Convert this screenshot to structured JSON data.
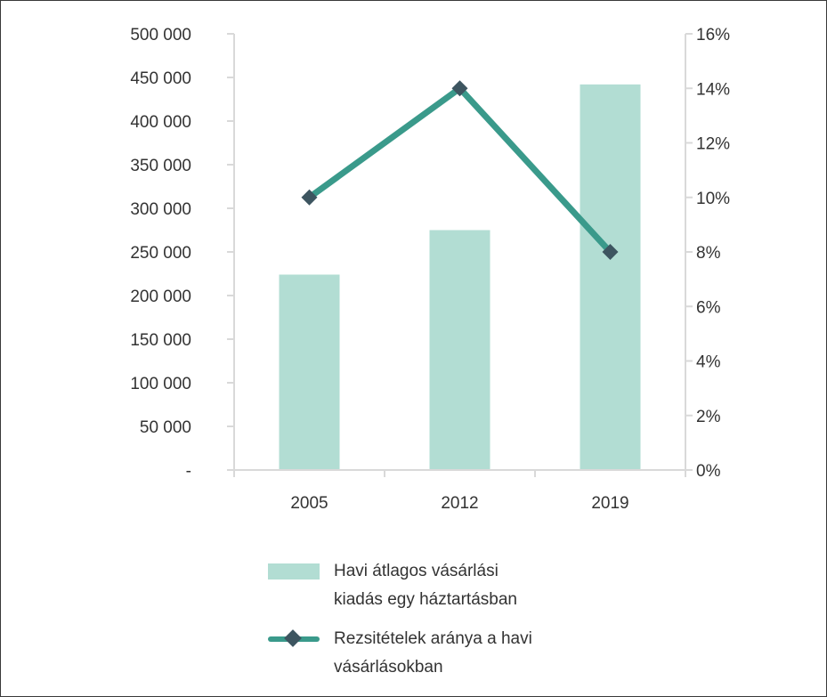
{
  "chart_data": {
    "type": "bar",
    "categories": [
      "2005",
      "2012",
      "2019"
    ],
    "series": [
      {
        "name": "Havi átlagos vásárlási kiadás egy háztartásban",
        "kind": "bar",
        "axis": "left",
        "values": [
          224000,
          275000,
          442000
        ],
        "color": "#b2ddd3"
      },
      {
        "name": "Rezsitételek aránya a havi vásárlásokban",
        "kind": "line",
        "axis": "right",
        "values": [
          10,
          14,
          8
        ],
        "color": "#3a9a8b",
        "marker_color": "#3d5560"
      }
    ],
    "left_axis": {
      "ylim": [
        0,
        500000
      ],
      "ticks": [
        0,
        50000,
        100000,
        150000,
        200000,
        250000,
        300000,
        350000,
        400000,
        450000,
        500000
      ],
      "tick_labels": [
        "-",
        "50 000",
        "100 000",
        "150 000",
        "200 000",
        "250 000",
        "300 000",
        "350 000",
        "400 000",
        "450 000",
        "500 000"
      ]
    },
    "right_axis": {
      "ylim": [
        0,
        16
      ],
      "ticks": [
        0,
        2,
        4,
        6,
        8,
        10,
        12,
        14,
        16
      ],
      "tick_labels": [
        "0%",
        "2%",
        "4%",
        "6%",
        "8%",
        "10%",
        "12%",
        "14%",
        "16%"
      ]
    },
    "title": "",
    "xlabel": "",
    "grid": false,
    "legend_position": "bottom",
    "axis_color": "#d9d9d9"
  },
  "legend": {
    "bar_label": "Havi átlagos vásárlási\nkiadás egy háztartásban",
    "line_label": "Rezsitételek aránya a havi\nvásárlásokban"
  }
}
